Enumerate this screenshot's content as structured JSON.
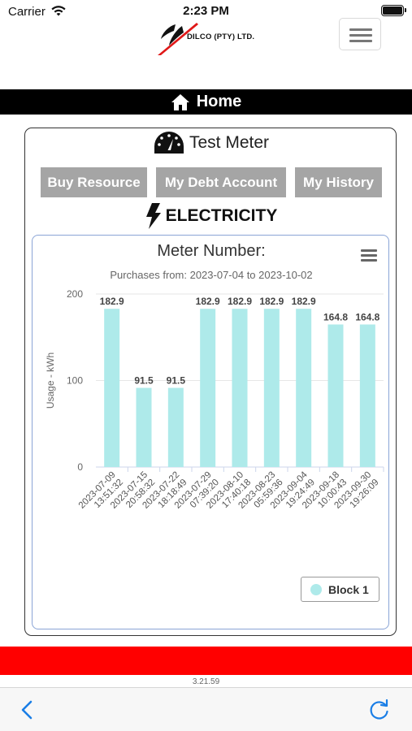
{
  "status_bar": {
    "carrier": "Carrier",
    "time": "2:23 PM"
  },
  "header": {
    "logo_text": "DILCO (PTY) LTD."
  },
  "nav": {
    "home_label": "Home"
  },
  "meter": {
    "title": "Test Meter"
  },
  "buttons": {
    "buy_resource": "Buy Resource",
    "my_debt_account": "My Debt Account",
    "my_history": "My History"
  },
  "section": {
    "title": "ELECTRICITY"
  },
  "colors": {
    "bar": "#aeeaea",
    "red_bar": "#ff0000",
    "nav_blue": "#1a7ee6",
    "button_gray": "#a5a5a5"
  },
  "chart_data": {
    "type": "bar",
    "title": "Meter Number:",
    "subtitle": "Purchases from: 2023-07-04 to 2023-10-02",
    "ylabel": "Usage - kWh",
    "ylim": [
      0,
      200
    ],
    "yticks": [
      "0",
      "100",
      "200"
    ],
    "grid": true,
    "legend_position": "bottom-right",
    "categories": [
      "2023-07-09 13:51:32",
      "2023-07-15 20:58:32",
      "2023-07-22 18:18:49",
      "2023-07-29 07:39:20",
      "2023-08-10 17:40:18",
      "2023-08-23 05:59:36",
      "2023-09-04 19:24:49",
      "2023-09-18 10:00:43",
      "2023-09-30 19:26:09"
    ],
    "series": [
      {
        "name": "Block 1",
        "values": [
          182.9,
          91.5,
          91.5,
          182.9,
          182.9,
          182.9,
          182.9,
          164.8,
          164.8
        ]
      }
    ]
  },
  "footer": {
    "version": "3.21.59"
  }
}
